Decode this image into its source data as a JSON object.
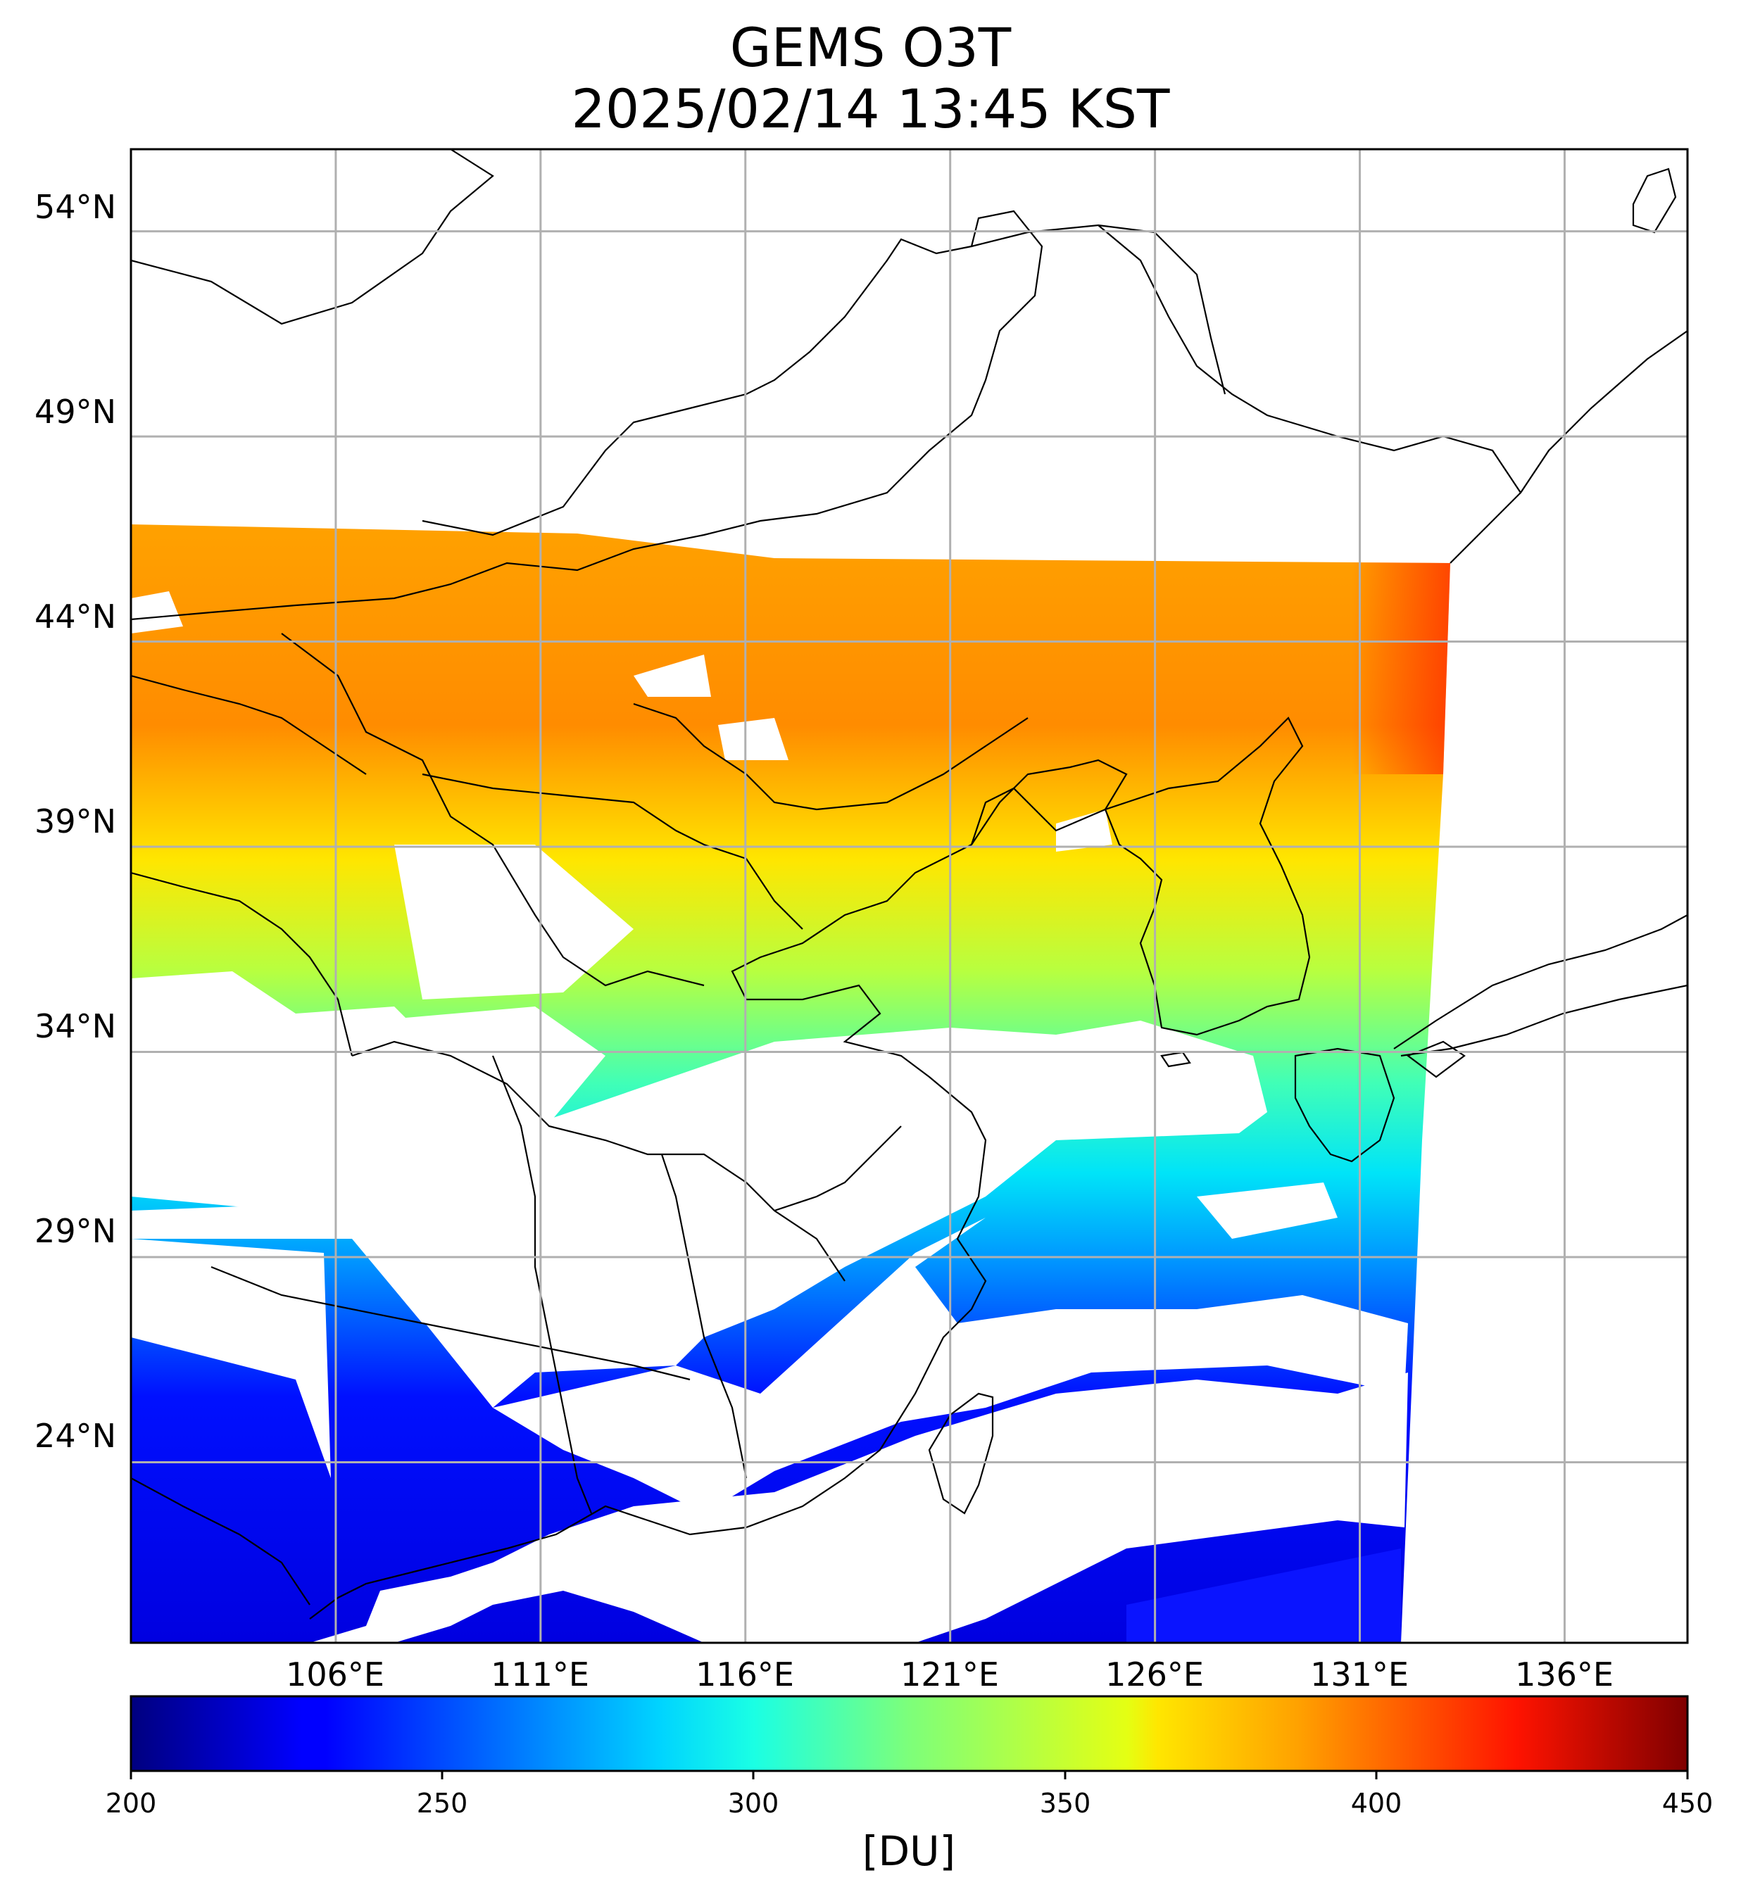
{
  "title": "GEMS O3T",
  "subtitle": "2025/02/14 13:45 KST",
  "map": {
    "lon_range": [
      101,
      139
    ],
    "lat_range": [
      19.6,
      56
    ],
    "lon_ticks": [
      "106°E",
      "111°E",
      "116°E",
      "121°E",
      "126°E",
      "131°E",
      "136°E"
    ],
    "lat_ticks": [
      "54°N",
      "49°N",
      "44°N",
      "39°N",
      "34°N",
      "29°N",
      "24°N"
    ],
    "grid": true
  },
  "colorbar": {
    "colormap": "jet",
    "range": [
      200,
      450
    ],
    "ticks": [
      "200",
      "250",
      "300",
      "350",
      "400",
      "450"
    ],
    "unit": "[DU]"
  }
}
